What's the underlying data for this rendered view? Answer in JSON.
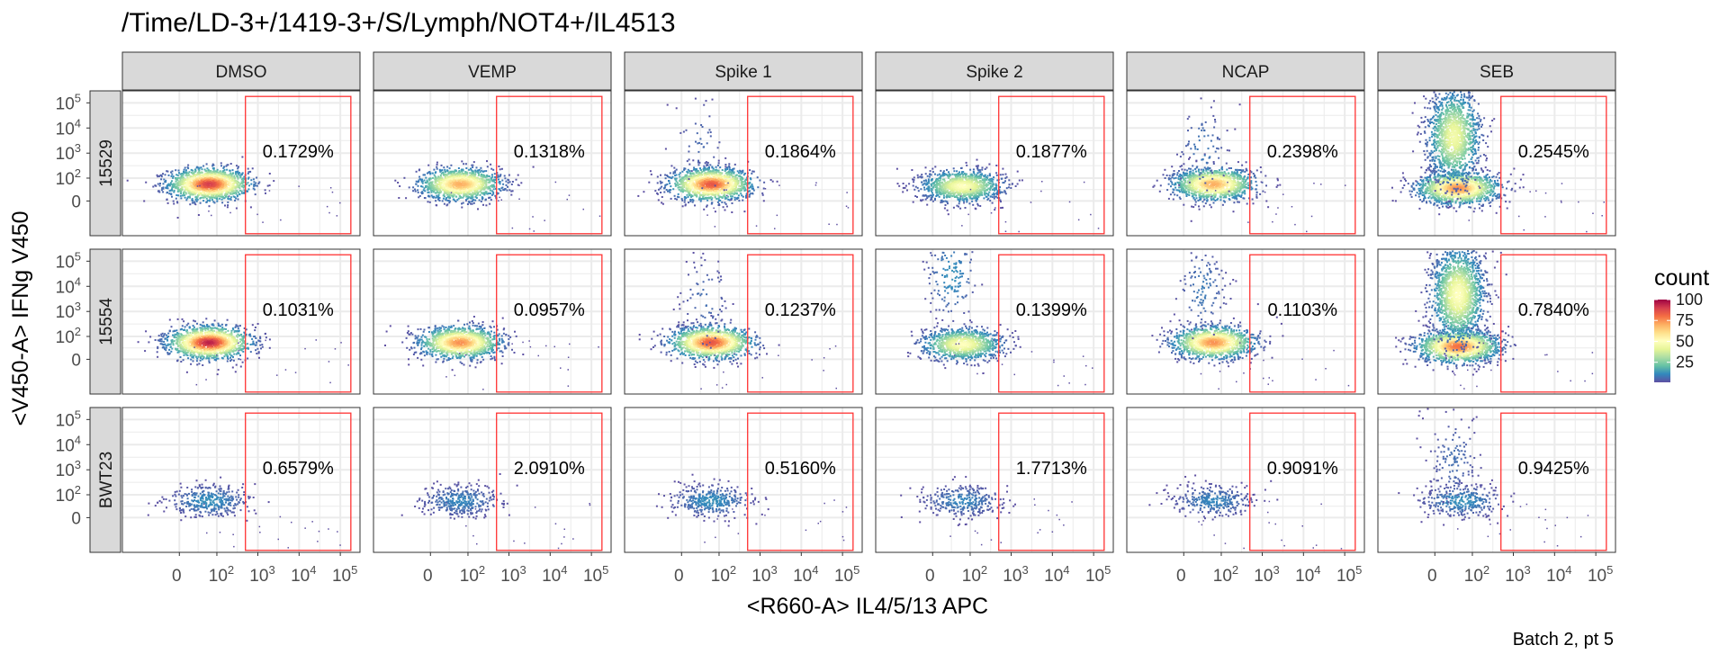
{
  "chart_data": {
    "type": "heatmap",
    "title": "/Time/LD-3+/1419-3+/S/Lymph/NOT4+/IL4513",
    "xlabel": "<R660-A> IL4/5/13 APC",
    "ylabel": "<V450-A> IFNg V450",
    "caption": "Batch 2, pt 5",
    "columns": [
      "DMSO",
      "VEMP",
      "Spike 1",
      "Spike 2",
      "NCAP",
      "SEB"
    ],
    "rows": [
      "15529",
      "15554",
      "BWT23"
    ],
    "x_ticks": [
      {
        "label": "0",
        "value": 0,
        "base": "0",
        "exp": ""
      },
      {
        "label": "10^2",
        "value": 100,
        "base": "10",
        "exp": "2"
      },
      {
        "label": "10^3",
        "value": 1000,
        "base": "10",
        "exp": "3"
      },
      {
        "label": "10^4",
        "value": 10000,
        "base": "10",
        "exp": "4"
      },
      {
        "label": "10^5",
        "value": 100000,
        "base": "10",
        "exp": "5"
      }
    ],
    "y_ticks": [
      {
        "label": "0",
        "value": 0,
        "base": "0",
        "exp": ""
      },
      {
        "label": "10^2",
        "value": 100,
        "base": "10",
        "exp": "2"
      },
      {
        "label": "10^3",
        "value": 1000,
        "base": "10",
        "exp": "3"
      },
      {
        "label": "10^4",
        "value": 10000,
        "base": "10",
        "exp": "4"
      },
      {
        "label": "10^5",
        "value": 100000,
        "base": "10",
        "exp": "5"
      }
    ],
    "gate": {
      "x_min": 500,
      "x_max": 180000,
      "y_min": -250,
      "y_max": 180000,
      "color": "#ff3333"
    },
    "gate_percent": [
      [
        "0.1729%",
        "0.1318%",
        "0.1864%",
        "0.1877%",
        "0.2398%",
        "0.2545%"
      ],
      [
        "0.1031%",
        "0.0957%",
        "0.1237%",
        "0.1399%",
        "0.1103%",
        "0.7840%"
      ],
      [
        "0.6579%",
        "2.0910%",
        "0.5160%",
        "1.7713%",
        "0.9091%",
        "0.9425%"
      ]
    ],
    "legend": {
      "title": "count",
      "labels": [
        "100",
        "75",
        "50",
        "25"
      ],
      "values": [
        100,
        75,
        50,
        25
      ],
      "range": [
        1,
        100
      ],
      "colors": [
        "#9e0142",
        "#d53e4f",
        "#f46d43",
        "#fdae61",
        "#fee08b",
        "#ffffbf",
        "#e6f598",
        "#abdda4",
        "#66c2a5",
        "#3288bd",
        "#5e4fa2"
      ]
    },
    "populations": [
      [
        [
          {
            "x": 60,
            "y": 60,
            "n": 1500,
            "peak": 90
          }
        ],
        [
          {
            "x": 60,
            "y": 60,
            "n": 1300,
            "peak": 70
          }
        ],
        [
          {
            "x": 60,
            "y": 60,
            "n": 1400,
            "peak": 85
          },
          {
            "x": 30,
            "y": 3000,
            "n": 50,
            "peak": 5
          }
        ],
        [
          {
            "x": 60,
            "y": 50,
            "n": 1100,
            "peak": 50
          }
        ],
        [
          {
            "x": 60,
            "y": 60,
            "n": 1300,
            "peak": 70
          },
          {
            "x": 30,
            "y": 1500,
            "n": 90,
            "peak": 8
          }
        ],
        [
          {
            "x": 40,
            "y": 40,
            "n": 1400,
            "peak": 75
          },
          {
            "x": 30,
            "y": 5000,
            "n": 1400,
            "peak": 45
          }
        ]
      ],
      [
        [
          {
            "x": 60,
            "y": 60,
            "n": 1500,
            "peak": 95
          }
        ],
        [
          {
            "x": 60,
            "y": 60,
            "n": 1400,
            "peak": 75
          }
        ],
        [
          {
            "x": 60,
            "y": 60,
            "n": 1400,
            "peak": 85
          },
          {
            "x": 40,
            "y": 3000,
            "n": 80,
            "peak": 6
          }
        ],
        [
          {
            "x": 60,
            "y": 50,
            "n": 1000,
            "peak": 50
          },
          {
            "x": 30,
            "y": 30000,
            "n": 160,
            "peak": 12
          }
        ],
        [
          {
            "x": 60,
            "y": 60,
            "n": 1300,
            "peak": 75
          },
          {
            "x": 30,
            "y": 8000,
            "n": 120,
            "peak": 8
          }
        ],
        [
          {
            "x": 40,
            "y": 40,
            "n": 1600,
            "peak": 80
          },
          {
            "x": 40,
            "y": 5000,
            "n": 1600,
            "peak": 50
          }
        ]
      ],
      [
        [
          {
            "x": 60,
            "y": 60,
            "n": 380,
            "peak": 12
          }
        ],
        [
          {
            "x": 60,
            "y": 60,
            "n": 360,
            "peak": 10
          }
        ],
        [
          {
            "x": 60,
            "y": 60,
            "n": 370,
            "peak": 12
          }
        ],
        [
          {
            "x": 60,
            "y": 60,
            "n": 320,
            "peak": 10
          }
        ],
        [
          {
            "x": 60,
            "y": 60,
            "n": 320,
            "peak": 10
          }
        ],
        [
          {
            "x": 50,
            "y": 60,
            "n": 320,
            "peak": 12
          },
          {
            "x": 30,
            "y": 3000,
            "n": 140,
            "peak": 6
          }
        ]
      ]
    ]
  }
}
